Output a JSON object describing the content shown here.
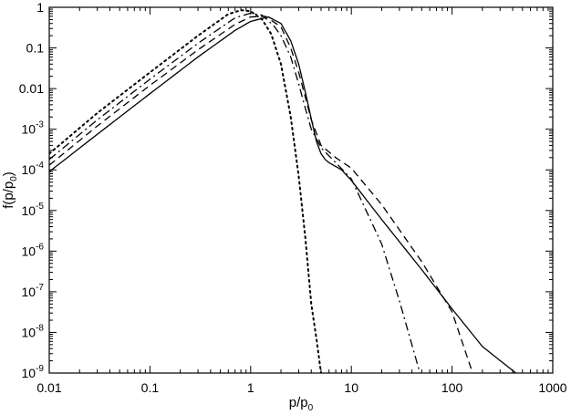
{
  "chart_data": {
    "type": "line",
    "title": "",
    "xscale": "log",
    "yscale": "log",
    "xlim": [
      0.01,
      1000
    ],
    "ylim": [
      1e-09,
      1
    ],
    "grid": false,
    "legend": "none",
    "xlabel": {
      "main": "p/p",
      "sub": "0"
    },
    "ylabel": {
      "main": "f(p/p",
      "sub": "0",
      "close": ")"
    },
    "x_ticks": [
      {
        "value": 0.01,
        "label": "0.01"
      },
      {
        "value": 0.1,
        "label": "0.1"
      },
      {
        "value": 1,
        "label": "1"
      },
      {
        "value": 10,
        "label": "10"
      },
      {
        "value": 100,
        "label": "100"
      },
      {
        "value": 1000,
        "label": "1000"
      }
    ],
    "y_ticks": [
      {
        "value": 1,
        "base": "1",
        "exp": ""
      },
      {
        "value": 0.1,
        "base": "0.1",
        "exp": ""
      },
      {
        "value": 0.01,
        "base": "0.01",
        "exp": ""
      },
      {
        "value": 0.001,
        "base": "10",
        "exp": "-3"
      },
      {
        "value": 0.0001,
        "base": "10",
        "exp": "-4"
      },
      {
        "value": 1e-05,
        "base": "10",
        "exp": "-5"
      },
      {
        "value": 1e-06,
        "base": "10",
        "exp": "-6"
      },
      {
        "value": 1e-07,
        "base": "10",
        "exp": "-7"
      },
      {
        "value": 1e-08,
        "base": "10",
        "exp": "-8"
      },
      {
        "value": 1e-09,
        "base": "10",
        "exp": "-9"
      }
    ],
    "series": [
      {
        "style": "solid",
        "color": "#000000",
        "x": [
          0.01,
          0.03,
          0.1,
          0.3,
          0.7,
          1.0,
          1.5,
          2.0,
          2.5,
          3.0,
          3.5,
          4.0,
          4.5,
          5.0,
          5.5,
          6.0,
          8.0,
          10,
          20,
          50,
          100,
          200,
          430
        ],
        "y": [
          9e-05,
          0.00075,
          0.0075,
          0.06,
          0.27,
          0.45,
          0.58,
          0.4,
          0.15,
          0.04,
          0.008,
          0.0018,
          0.0005,
          0.00025,
          0.00018,
          0.00015,
          0.0001,
          5.5e-05,
          6e-06,
          3.5e-07,
          3.8e-08,
          4.5e-09,
          1e-09
        ]
      },
      {
        "style": "dashed",
        "color": "#000000",
        "x": [
          0.01,
          0.03,
          0.1,
          0.3,
          0.7,
          1.0,
          1.4,
          2.0,
          2.5,
          3.0,
          3.5,
          4.0,
          5.0,
          7.0,
          10,
          20,
          50,
          100,
          160
        ],
        "y": [
          0.00013,
          0.0012,
          0.012,
          0.09,
          0.38,
          0.58,
          0.6,
          0.33,
          0.1,
          0.025,
          0.006,
          0.0017,
          0.0004,
          0.0002,
          0.00011,
          1.4e-05,
          5.5e-07,
          3.2e-08,
          1e-09
        ]
      },
      {
        "style": "dash-dot",
        "color": "#000000",
        "x": [
          0.01,
          0.03,
          0.1,
          0.3,
          0.7,
          1.0,
          1.3,
          1.7,
          2.0,
          2.5,
          3.0,
          3.5,
          4.0,
          5.0,
          7.0,
          10,
          20,
          30,
          48
        ],
        "y": [
          0.00018,
          0.0017,
          0.017,
          0.13,
          0.55,
          0.72,
          0.64,
          0.35,
          0.2,
          0.06,
          0.013,
          0.0032,
          0.001,
          0.00035,
          0.00015,
          6e-05,
          1.5e-06,
          6e-08,
          1e-09
        ]
      },
      {
        "style": "dotted",
        "color": "#000000",
        "x": [
          0.01,
          0.03,
          0.1,
          0.3,
          0.6,
          0.8,
          1.0,
          1.3,
          1.6,
          2.0,
          2.5,
          3.0,
          3.5,
          4.0,
          4.5,
          5.0
        ],
        "y": [
          0.00025,
          0.0025,
          0.025,
          0.2,
          0.68,
          0.85,
          0.8,
          0.5,
          0.22,
          0.04,
          0.002,
          7e-05,
          2e-06,
          5e-08,
          7e-09,
          1e-09
        ]
      }
    ]
  }
}
